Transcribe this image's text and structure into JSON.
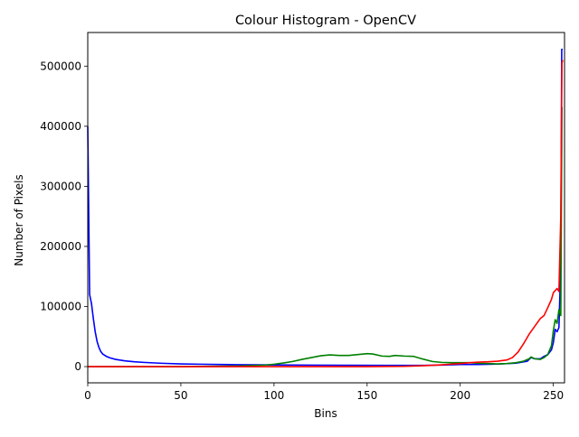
{
  "chart_data": {
    "type": "line",
    "title": "Colour Histogram - OpenCV",
    "xlabel": "Bins",
    "ylabel": "Number of Pixels",
    "xlim": [
      0,
      256
    ],
    "ylim": [
      -27000,
      556000
    ],
    "xticks": [
      0,
      50,
      100,
      150,
      200,
      250
    ],
    "yticks": [
      0,
      100000,
      200000,
      300000,
      400000,
      500000
    ],
    "grid": false,
    "legend": "none",
    "series": [
      {
        "color": "#0000ff",
        "points": [
          [
            0,
            400000
          ],
          [
            1,
            120000
          ],
          [
            2,
            105000
          ],
          [
            3,
            80000
          ],
          [
            4,
            58000
          ],
          [
            5,
            42000
          ],
          [
            6,
            32000
          ],
          [
            7,
            25000
          ],
          [
            8,
            21000
          ],
          [
            10,
            17000
          ],
          [
            12,
            14500
          ],
          [
            15,
            12000
          ],
          [
            20,
            9500
          ],
          [
            25,
            8000
          ],
          [
            30,
            7000
          ],
          [
            40,
            5500
          ],
          [
            50,
            4500
          ],
          [
            60,
            4000
          ],
          [
            80,
            3200
          ],
          [
            100,
            2700
          ],
          [
            120,
            2400
          ],
          [
            140,
            2200
          ],
          [
            160,
            2100
          ],
          [
            180,
            2100
          ],
          [
            190,
            2500
          ],
          [
            200,
            3500
          ],
          [
            210,
            3500
          ],
          [
            220,
            4200
          ],
          [
            230,
            5800
          ],
          [
            236,
            9000
          ],
          [
            238,
            15000
          ],
          [
            240,
            13000
          ],
          [
            243,
            13000
          ],
          [
            245,
            17000
          ],
          [
            247,
            20000
          ],
          [
            249,
            28000
          ],
          [
            250,
            40000
          ],
          [
            251,
            62000
          ],
          [
            252,
            58000
          ],
          [
            253,
            65000
          ],
          [
            254,
            170000
          ],
          [
            254.5,
            528000
          ],
          [
            255,
            528000
          ]
        ]
      },
      {
        "color": "#008000",
        "points": [
          [
            0,
            0
          ],
          [
            50,
            0
          ],
          [
            80,
            1000
          ],
          [
            95,
            2500
          ],
          [
            100,
            4000
          ],
          [
            105,
            6000
          ],
          [
            110,
            8500
          ],
          [
            115,
            12000
          ],
          [
            120,
            15000
          ],
          [
            125,
            18000
          ],
          [
            130,
            19500
          ],
          [
            135,
            18500
          ],
          [
            140,
            18500
          ],
          [
            145,
            20000
          ],
          [
            150,
            21500
          ],
          [
            153,
            21000
          ],
          [
            158,
            17500
          ],
          [
            162,
            17000
          ],
          [
            165,
            18500
          ],
          [
            170,
            17500
          ],
          [
            175,
            17000
          ],
          [
            180,
            12500
          ],
          [
            185,
            8500
          ],
          [
            190,
            7000
          ],
          [
            195,
            6500
          ],
          [
            200,
            6500
          ],
          [
            205,
            6500
          ],
          [
            210,
            5500
          ],
          [
            215,
            5000
          ],
          [
            220,
            4500
          ],
          [
            225,
            5000
          ],
          [
            230,
            6500
          ],
          [
            234,
            9000
          ],
          [
            237,
            13000
          ],
          [
            238,
            16000
          ],
          [
            240,
            13000
          ],
          [
            243,
            12000
          ],
          [
            245,
            15000
          ],
          [
            247,
            20000
          ],
          [
            249,
            35000
          ],
          [
            250,
            60000
          ],
          [
            251,
            78000
          ],
          [
            252,
            72000
          ],
          [
            253,
            95000
          ],
          [
            254,
            85000
          ],
          [
            254.6,
            432000
          ]
        ]
      },
      {
        "color": "#ff0000",
        "points": [
          [
            0,
            0
          ],
          [
            50,
            0
          ],
          [
            100,
            0
          ],
          [
            150,
            0
          ],
          [
            170,
            500
          ],
          [
            180,
            1500
          ],
          [
            190,
            3000
          ],
          [
            195,
            4000
          ],
          [
            200,
            5000
          ],
          [
            205,
            6500
          ],
          [
            210,
            7500
          ],
          [
            215,
            8000
          ],
          [
            220,
            9000
          ],
          [
            225,
            11000
          ],
          [
            228,
            15000
          ],
          [
            231,
            24000
          ],
          [
            234,
            38000
          ],
          [
            237,
            54000
          ],
          [
            240,
            67000
          ],
          [
            243,
            80000
          ],
          [
            245,
            85000
          ],
          [
            247,
            98000
          ],
          [
            249,
            112000
          ],
          [
            250,
            123000
          ],
          [
            252,
            130000
          ],
          [
            253,
            125000
          ],
          [
            254,
            250000
          ],
          [
            254.6,
            505000
          ],
          [
            255,
            510000
          ]
        ]
      }
    ]
  }
}
